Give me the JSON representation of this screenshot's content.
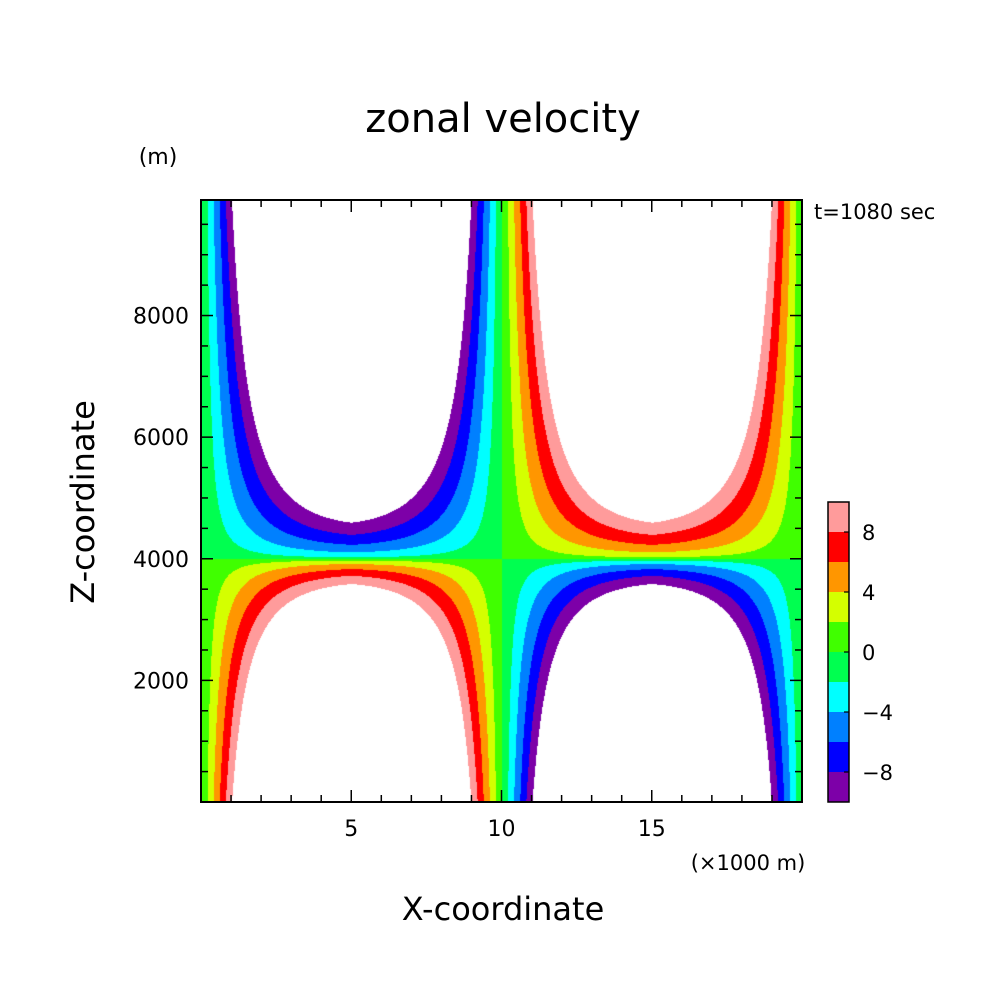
{
  "chart_data": {
    "type": "heatmap",
    "subtype": "filled-contour",
    "title": "zonal velocity",
    "xlabel": "X-coordinate",
    "ylabel": "Z-coordinate",
    "x_unit": "(×1000 m)",
    "y_unit": "(m)",
    "annotation": "t=1080 sec",
    "xlim": [
      0,
      20
    ],
    "ylim": [
      0,
      9900
    ],
    "x_ticks": [
      5,
      10,
      15
    ],
    "x_tick_labels": [
      "5",
      "10",
      "15"
    ],
    "y_ticks": [
      2000,
      4000,
      6000,
      8000
    ],
    "y_tick_labels": [
      "2000",
      "4000",
      "6000",
      "8000"
    ],
    "colorbar": {
      "levels": [
        -10,
        -8,
        -6,
        -4,
        -2,
        0,
        2,
        4,
        6,
        8,
        10
      ],
      "tick_values": [
        -8,
        -4,
        0,
        4,
        8
      ],
      "tick_labels": [
        "−8",
        "−4",
        "0",
        "4",
        "8"
      ],
      "colors": [
        "#7d00a8",
        "#0000ff",
        "#0080ff",
        "#00ffff",
        "#00ff50",
        "#40ff00",
        "#d4ff00",
        "#ff9600",
        "#ff0000",
        "#ff9b9b"
      ],
      "beyond_color": "#ffffff"
    },
    "field_model": {
      "description": "u(x,z) sign-alternating cellular pattern, peaks |u|>10 in four lobes",
      "upper_center_x": 8.4,
      "lower_center_x": 11.6,
      "z_node": 4000
    }
  }
}
